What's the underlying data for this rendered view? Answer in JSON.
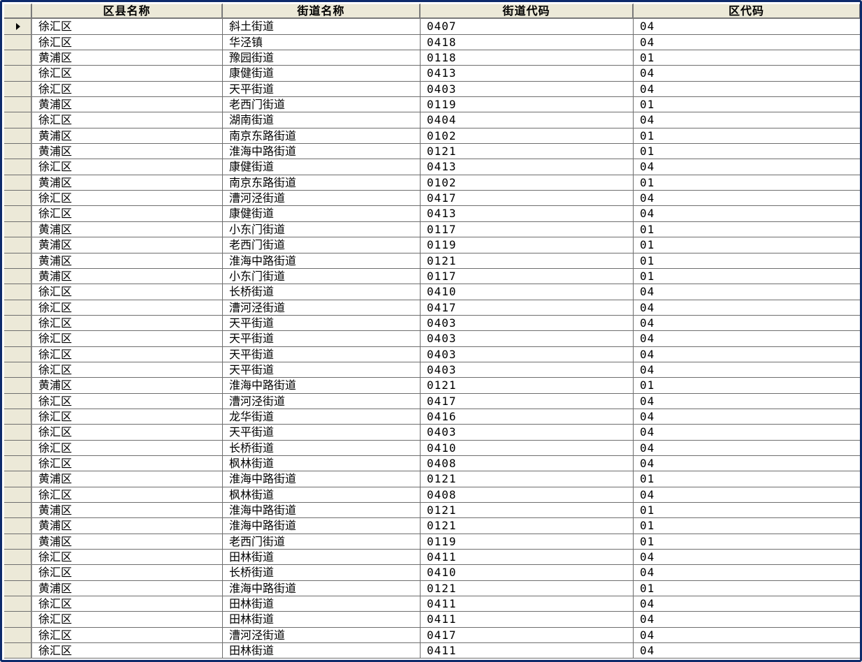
{
  "grid": {
    "columns": [
      "区县名称",
      "街道名称",
      "街道代码",
      "区代码"
    ],
    "selected_row": 0,
    "rows": [
      [
        "徐汇区",
        "斜土街道",
        "0407",
        "04"
      ],
      [
        "徐汇区",
        "华泾镇",
        "0418",
        "04"
      ],
      [
        "黄浦区",
        "豫园街道",
        "0118",
        "01"
      ],
      [
        "徐汇区",
        "康健街道",
        "0413",
        "04"
      ],
      [
        "徐汇区",
        "天平街道",
        "0403",
        "04"
      ],
      [
        "黄浦区",
        "老西门街道",
        "0119",
        "01"
      ],
      [
        "徐汇区",
        "湖南街道",
        "0404",
        "04"
      ],
      [
        "黄浦区",
        "南京东路街道",
        "0102",
        "01"
      ],
      [
        "黄浦区",
        "淮海中路街道",
        "0121",
        "01"
      ],
      [
        "徐汇区",
        "康健街道",
        "0413",
        "04"
      ],
      [
        "黄浦区",
        "南京东路街道",
        "0102",
        "01"
      ],
      [
        "徐汇区",
        "漕河泾街道",
        "0417",
        "04"
      ],
      [
        "徐汇区",
        "康健街道",
        "0413",
        "04"
      ],
      [
        "黄浦区",
        "小东门街道",
        "0117",
        "01"
      ],
      [
        "黄浦区",
        "老西门街道",
        "0119",
        "01"
      ],
      [
        "黄浦区",
        "淮海中路街道",
        "0121",
        "01"
      ],
      [
        "黄浦区",
        "小东门街道",
        "0117",
        "01"
      ],
      [
        "徐汇区",
        "长桥街道",
        "0410",
        "04"
      ],
      [
        "徐汇区",
        "漕河泾街道",
        "0417",
        "04"
      ],
      [
        "徐汇区",
        "天平街道",
        "0403",
        "04"
      ],
      [
        "徐汇区",
        "天平街道",
        "0403",
        "04"
      ],
      [
        "徐汇区",
        "天平街道",
        "0403",
        "04"
      ],
      [
        "徐汇区",
        "天平街道",
        "0403",
        "04"
      ],
      [
        "黄浦区",
        "淮海中路街道",
        "0121",
        "01"
      ],
      [
        "徐汇区",
        "漕河泾街道",
        "0417",
        "04"
      ],
      [
        "徐汇区",
        "龙华街道",
        "0416",
        "04"
      ],
      [
        "徐汇区",
        "天平街道",
        "0403",
        "04"
      ],
      [
        "徐汇区",
        "长桥街道",
        "0410",
        "04"
      ],
      [
        "徐汇区",
        "枫林街道",
        "0408",
        "04"
      ],
      [
        "黄浦区",
        "淮海中路街道",
        "0121",
        "01"
      ],
      [
        "徐汇区",
        "枫林街道",
        "0408",
        "04"
      ],
      [
        "黄浦区",
        "淮海中路街道",
        "0121",
        "01"
      ],
      [
        "黄浦区",
        "淮海中路街道",
        "0121",
        "01"
      ],
      [
        "黄浦区",
        "老西门街道",
        "0119",
        "01"
      ],
      [
        "徐汇区",
        "田林街道",
        "0411",
        "04"
      ],
      [
        "徐汇区",
        "长桥街道",
        "0410",
        "04"
      ],
      [
        "黄浦区",
        "淮海中路街道",
        "0121",
        "01"
      ],
      [
        "徐汇区",
        "田林街道",
        "0411",
        "04"
      ],
      [
        "徐汇区",
        "田林街道",
        "0411",
        "04"
      ],
      [
        "徐汇区",
        "漕河泾街道",
        "0417",
        "04"
      ],
      [
        "徐汇区",
        "田林街道",
        "0411",
        "04"
      ]
    ]
  }
}
